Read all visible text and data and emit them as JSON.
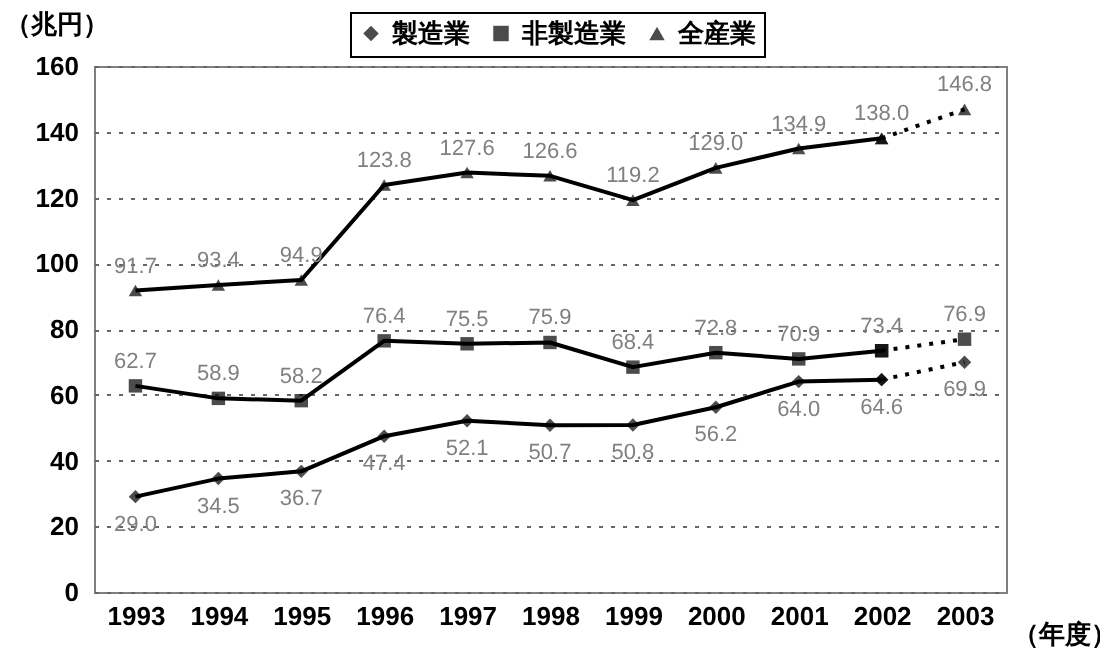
{
  "chart_data": {
    "type": "line",
    "ylabel": "（兆円）",
    "xlabel": "（年度）",
    "categories": [
      "1993",
      "1994",
      "1995",
      "1996",
      "1997",
      "1998",
      "1999",
      "2000",
      "2001",
      "2002",
      "2003"
    ],
    "ylim": [
      0,
      160
    ],
    "yticks": [
      0,
      20,
      40,
      60,
      80,
      100,
      120,
      140,
      160
    ],
    "grid": "y",
    "legend": "top",
    "series": [
      {
        "name": "製造業",
        "color": "#000000",
        "marker": "diamond",
        "line_style": "solid",
        "values": [
          29.0,
          34.5,
          36.7,
          47.4,
          52.1,
          50.7,
          50.8,
          56.2,
          64.0,
          64.6,
          null
        ],
        "value_labels": [
          "29.0",
          "34.5",
          "36.7",
          "47.4",
          "52.1",
          "50.7",
          "50.8",
          "56.2",
          "64.0",
          "64.6",
          null
        ]
      },
      {
        "name": "非製造業",
        "color": "#000000",
        "marker": "square",
        "line_style": "solid",
        "values": [
          62.7,
          58.9,
          58.2,
          76.4,
          75.5,
          75.9,
          68.4,
          72.8,
          70.9,
          73.4,
          null
        ],
        "value_labels": [
          "62.7",
          "58.9",
          "58.2",
          "76.4",
          "75.5",
          "75.9",
          "68.4",
          "72.8",
          "70.9",
          "73.4",
          null
        ]
      },
      {
        "name": "全産業",
        "color": "#000000",
        "marker": "triangle",
        "line_style": "solid",
        "values": [
          91.7,
          93.4,
          94.9,
          123.8,
          127.6,
          126.6,
          119.2,
          129.0,
          134.9,
          138.0,
          null
        ],
        "value_labels": [
          "91.7",
          "93.4",
          "94.9",
          "123.8",
          "127.6",
          "126.6",
          "119.2",
          "129.0",
          "134.9",
          "138.0",
          null
        ]
      },
      {
        "color": "#000000",
        "marker": "diamond",
        "line_style": "dotted",
        "values": [
          null,
          null,
          null,
          null,
          null,
          null,
          null,
          null,
          null,
          64.6,
          69.9
        ],
        "value_labels": [
          null,
          null,
          null,
          null,
          null,
          null,
          null,
          null,
          null,
          null,
          "69.9"
        ]
      },
      {
        "color": "#000000",
        "marker": "square",
        "line_style": "dotted",
        "values": [
          null,
          null,
          null,
          null,
          null,
          null,
          null,
          null,
          null,
          73.4,
          76.9
        ],
        "value_labels": [
          null,
          null,
          null,
          null,
          null,
          null,
          null,
          null,
          null,
          null,
          "76.9"
        ]
      },
      {
        "color": "#000000",
        "marker": "triangle",
        "line_style": "dotted",
        "values": [
          null,
          null,
          null,
          null,
          null,
          null,
          null,
          null,
          null,
          138.0,
          146.8
        ],
        "value_labels": [
          null,
          null,
          null,
          null,
          null,
          null,
          null,
          null,
          null,
          null,
          "146.8"
        ]
      }
    ]
  }
}
